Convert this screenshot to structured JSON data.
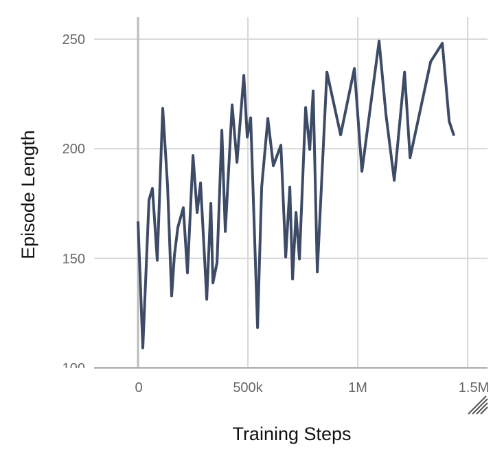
{
  "chart_data": {
    "type": "line",
    "title": "",
    "xlabel": "Training Steps",
    "ylabel": "Episode Length",
    "xlim": [
      -200000,
      1590000
    ],
    "ylim": [
      100,
      260
    ],
    "grid": true,
    "x_ticks": [
      {
        "value": 0,
        "label": "0"
      },
      {
        "value": 500000,
        "label": "500k"
      },
      {
        "value": 1000000,
        "label": "1M"
      },
      {
        "value": 1500000,
        "label": "1.5M"
      }
    ],
    "y_ticks": [
      {
        "value": 100,
        "label": "100"
      },
      {
        "value": 150,
        "label": "150"
      },
      {
        "value": 200,
        "label": "200"
      },
      {
        "value": 250,
        "label": "250"
      }
    ],
    "line_color": "#3d4b66",
    "series": [
      {
        "x": [
          0,
          21875,
          50000,
          65625,
          87500,
          112500,
          134375,
          153125,
          165625,
          181250,
          206250,
          225000,
          250000,
          268750,
          284375,
          312500,
          331250,
          340625,
          359375,
          381250,
          396875,
          428125,
          450000,
          481250,
          496875,
          512500,
          543750,
          562500,
          590625,
          615625,
          650000,
          671875,
          690625,
          703125,
          718750,
          734375,
          762500,
          781250,
          796875,
          815625,
          859375,
          921875,
          984375,
          1018750,
          1096875,
          1128125,
          1165625,
          1212500,
          1237500,
          1284375,
          1331250,
          1384375,
          1415625,
          1437500
        ],
        "y": [
          166.9,
          109.1,
          176.6,
          181.9,
          149.1,
          218.4,
          183.4,
          132.8,
          151.3,
          164.1,
          173.1,
          143.4,
          196.9,
          170.9,
          184.4,
          131.3,
          175.0,
          138.8,
          148.1,
          208.4,
          162.2,
          220.0,
          193.8,
          233.4,
          205.3,
          214.1,
          118.4,
          182.5,
          213.8,
          192.2,
          201.6,
          150.6,
          182.5,
          140.6,
          170.9,
          149.7,
          218.8,
          199.7,
          226.3,
          143.8,
          235.0,
          206.3,
          236.6,
          189.7,
          249.1,
          215.6,
          185.6,
          235.0,
          195.9,
          217.8,
          239.7,
          248.1,
          212.5,
          205.9
        ]
      }
    ]
  },
  "controls": {
    "resize_handle_icon": "resize-handle-icon"
  }
}
